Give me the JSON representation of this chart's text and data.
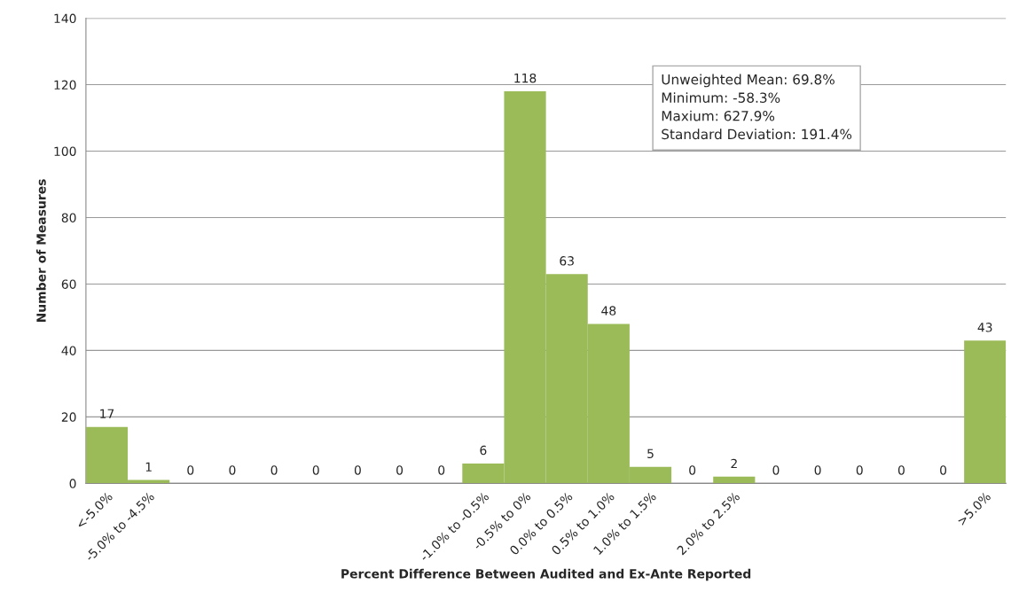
{
  "chart_data": {
    "type": "bar",
    "xlabel": "Percent Difference Between Audited and Ex-Ante Reported",
    "ylabel": "Number of Measures",
    "categories": [
      "<-5.0%",
      "-5.0% to -4.5%",
      null,
      null,
      null,
      null,
      null,
      null,
      null,
      "-1.0% to -0.5%",
      "-0.5% to 0%",
      "0.0% to 0.5%",
      "0.5% to 1.0%",
      "1.0% to 1.5%",
      null,
      "2.0% to 2.5%",
      null,
      null,
      null,
      null,
      null,
      ">5.0%"
    ],
    "values": [
      17,
      1,
      0,
      0,
      0,
      0,
      0,
      0,
      0,
      6,
      118,
      63,
      48,
      5,
      0,
      2,
      0,
      0,
      0,
      0,
      0,
      43
    ],
    "color": "#9bbb59",
    "ylim": [
      0,
      140
    ],
    "yticks": [
      0,
      20,
      40,
      60,
      80,
      100,
      120,
      140
    ],
    "grid": "y",
    "data_labels": true,
    "annotations": [
      "Unweighted Mean: 69.8%",
      "Minimum: -58.3%",
      "Maxium: 627.9%",
      "Standard Deviation: 191.4%"
    ]
  }
}
